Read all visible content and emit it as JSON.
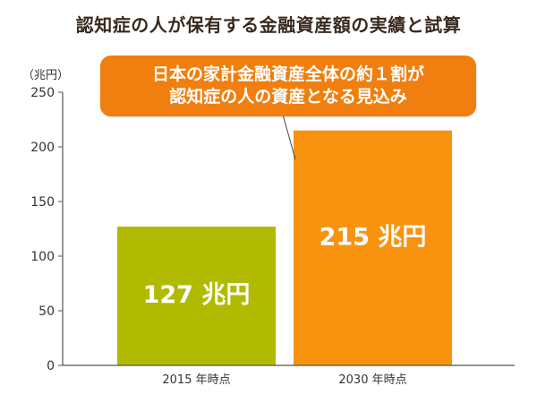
{
  "colors": {
    "bar_2015": "#b0ba00",
    "bar_2030": "#f7930f",
    "callout": "#f07f0f",
    "axis": "#555555"
  },
  "callout": {
    "line1": "日本の家計金融資産全体の約１割が",
    "line2": "認知症の人の資産となる見込み"
  },
  "chart_data": {
    "type": "bar",
    "title": "認知症の人が保有する金融資産額の実績と試算",
    "ylabel": "（兆円）",
    "categories": [
      "2015 年時点",
      "2030 年時点"
    ],
    "values": [
      127,
      215
    ],
    "data_labels": [
      "127 兆円",
      "215 兆円"
    ],
    "ylim": [
      0,
      250
    ],
    "yticks": [
      0,
      50,
      100,
      150,
      200,
      250
    ],
    "grid": false,
    "legend": "none"
  }
}
